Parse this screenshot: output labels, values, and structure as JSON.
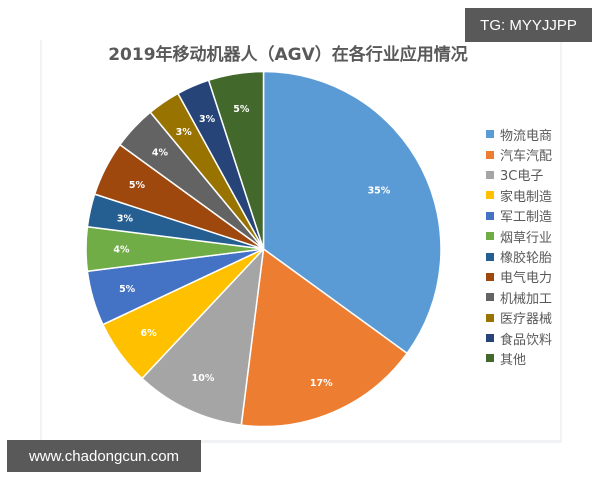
{
  "watermarks": {
    "top_right": "TG: MYYJJPP",
    "bottom_left": "www.chadongcun.com"
  },
  "chart_data": {
    "type": "pie",
    "title": "2019年移动机器人（AGV）在各行业应用情况",
    "start_angle_deg": 0,
    "direction": "clockwise",
    "legend_position": "right",
    "categories": [
      "物流电商",
      "汽车汽配",
      "3C电子",
      "家电制造",
      "军工制造",
      "烟草行业",
      "橡胶轮胎",
      "电气电力",
      "机械加工",
      "医疗器械",
      "食品饮料",
      "其他"
    ],
    "values": [
      35,
      17,
      10,
      6,
      5,
      4,
      3,
      5,
      4,
      3,
      3,
      5
    ],
    "labels": [
      "35%",
      "17%",
      "10%",
      "6%",
      "5%",
      "4%",
      "3%",
      "5%",
      "4%",
      "3%",
      "3%",
      "5%"
    ],
    "colors": [
      "#5B9BD5",
      "#ED7D31",
      "#A5A5A5",
      "#FFC000",
      "#4472C4",
      "#70AD47",
      "#255E91",
      "#9E480E",
      "#636363",
      "#997300",
      "#264478",
      "#43682B"
    ],
    "unit": "%"
  },
  "legend": {
    "items": [
      {
        "label": "物流电商",
        "color": "#5B9BD5"
      },
      {
        "label": "汽车汽配",
        "color": "#ED7D31"
      },
      {
        "label": "3C电子",
        "color": "#A5A5A5"
      },
      {
        "label": "家电制造",
        "color": "#FFC000"
      },
      {
        "label": "军工制造",
        "color": "#4472C4"
      },
      {
        "label": "烟草行业",
        "color": "#70AD47"
      },
      {
        "label": "橡胶轮胎",
        "color": "#255E91"
      },
      {
        "label": "电气电力",
        "color": "#9E480E"
      },
      {
        "label": "机械加工",
        "color": "#636363"
      },
      {
        "label": "医疗器械",
        "color": "#997300"
      },
      {
        "label": "食品饮料",
        "color": "#264478"
      },
      {
        "label": "其他",
        "color": "#43682B"
      }
    ]
  }
}
